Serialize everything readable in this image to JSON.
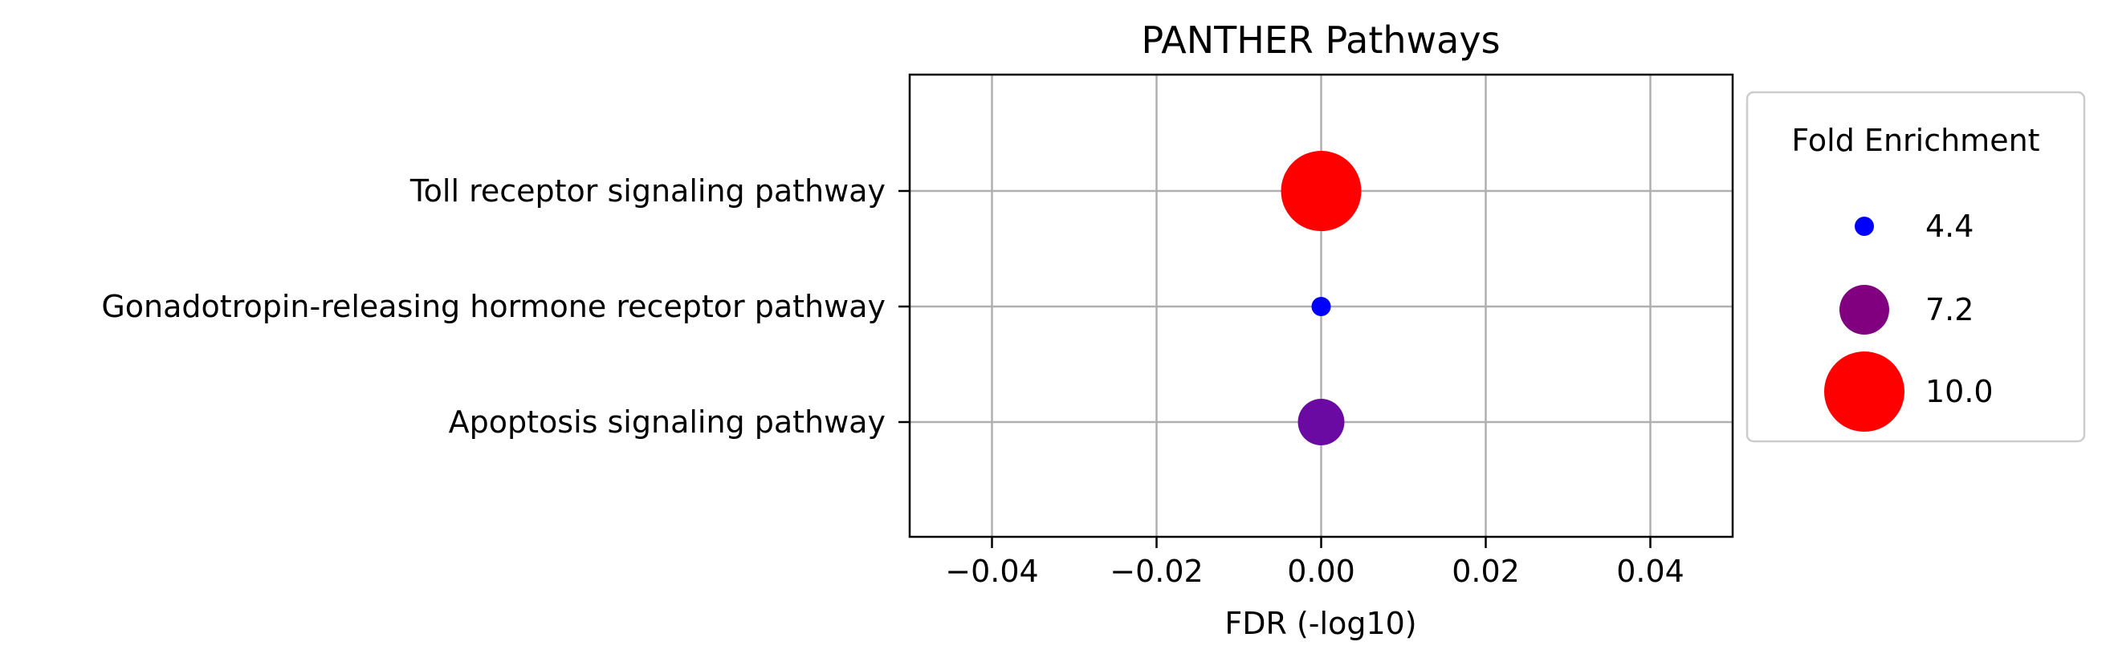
{
  "chart_data": {
    "type": "scatter",
    "title": "PANTHER Pathways",
    "xlabel": "FDR (-log10)",
    "ylabel": "",
    "xlim": [
      -0.05,
      0.05
    ],
    "xticks": [
      -0.04,
      -0.02,
      0.0,
      0.02,
      0.04
    ],
    "xtick_labels": [
      "−0.04",
      "−0.02",
      "0.00",
      "0.02",
      "0.04"
    ],
    "categories": [
      "Toll receptor signaling pathway",
      "Gonadotropin-releasing hormone receptor pathway",
      "Apoptosis signaling pathway"
    ],
    "points": [
      {
        "category": "Toll receptor signaling pathway",
        "x": 0.0,
        "fold_enrichment": 10.0,
        "color": "#ff0000"
      },
      {
        "category": "Gonadotropin-releasing hormone receptor pathway",
        "x": 0.0,
        "fold_enrichment": 4.4,
        "color": "#0000ff"
      },
      {
        "category": "Apoptosis signaling pathway",
        "x": 0.0,
        "fold_enrichment": 6.9,
        "color": "#6a0aa3"
      }
    ],
    "grid": true,
    "legend": {
      "title": "Fold Enrichment",
      "placement": "outside-right",
      "entries": [
        {
          "label": "4.4",
          "value": 4.4,
          "color": "#0000ff"
        },
        {
          "label": "7.2",
          "value": 7.2,
          "color": "#800080"
        },
        {
          "label": "10.0",
          "value": 10.0,
          "color": "#ff0000"
        }
      ]
    }
  }
}
